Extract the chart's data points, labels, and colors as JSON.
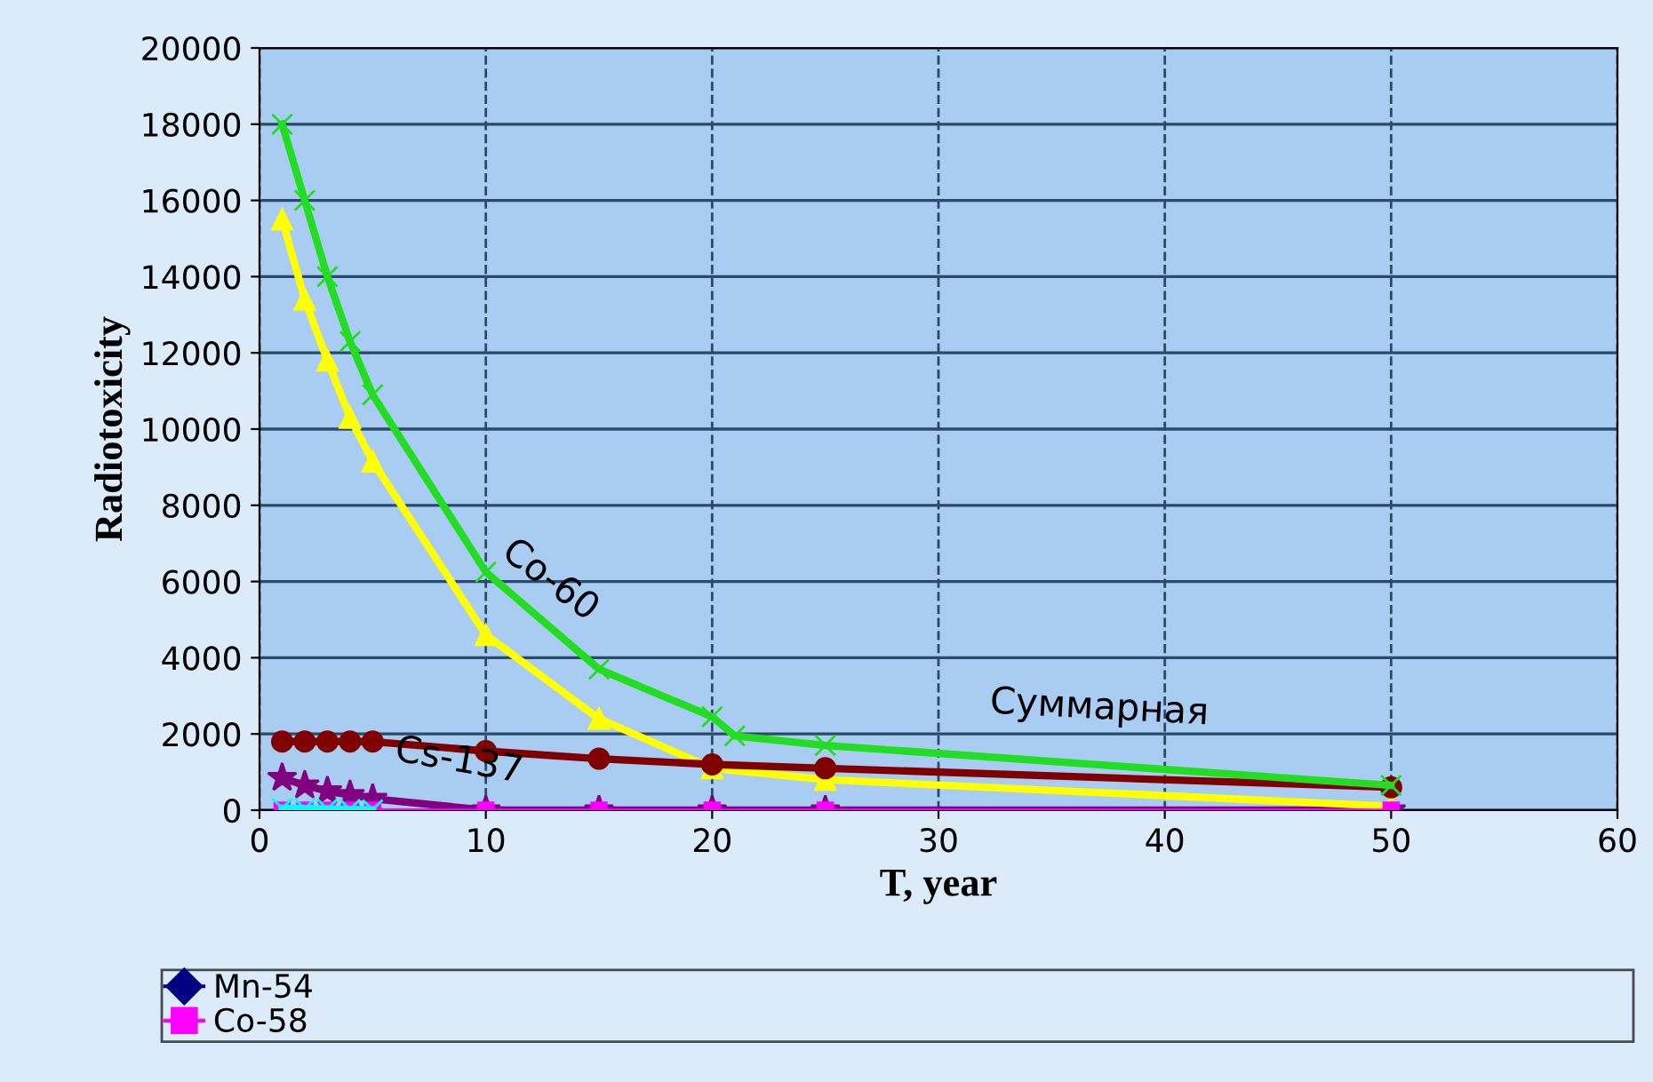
{
  "chart_data": {
    "type": "line",
    "xlabel": "T, year",
    "ylabel": "Radiotoxicity",
    "x": [
      1,
      2,
      3,
      4,
      5,
      10,
      15,
      20,
      25,
      50
    ],
    "xlim": [
      0,
      60
    ],
    "xticks": [
      0,
      10,
      20,
      30,
      40,
      50,
      60
    ],
    "ylim": [
      0,
      20000
    ],
    "yticks": [
      0,
      2000,
      4000,
      6000,
      8000,
      10000,
      12000,
      14000,
      16000,
      18000,
      20000
    ],
    "grid": true,
    "legend": "bottom",
    "line_style": "solid",
    "series": [
      {
        "name": "Mn-54",
        "color": "#000080",
        "marker": "diamond",
        "values": [
          null,
          null,
          null,
          null,
          null,
          null,
          null,
          null,
          null,
          null
        ]
      },
      {
        "name": "Co-58",
        "color": "#ff00ff",
        "marker": "square",
        "values": [
          0,
          0,
          0,
          0,
          0,
          0,
          0,
          0,
          0,
          0
        ]
      },
      {
        "color": "#00ffff",
        "marker": "cross",
        "values": [
          50,
          40,
          30,
          20,
          10,
          null,
          null,
          null,
          null,
          null
        ]
      },
      {
        "color": "#800080",
        "marker": "star",
        "values": [
          850,
          650,
          500,
          400,
          300,
          0,
          0,
          0,
          0,
          0
        ]
      },
      {
        "name": "Co-60",
        "color": "#ffff00",
        "marker": "triangle",
        "values": [
          15500,
          13400,
          11800,
          10300,
          9150,
          4600,
          2400,
          1100,
          800,
          100
        ]
      },
      {
        "name": "Cs-137",
        "color": "#800000",
        "marker": "circle",
        "values": [
          1800,
          1800,
          1800,
          1800,
          1800,
          1550,
          1350,
          1200,
          1100,
          600
        ]
      },
      {
        "name": "Суммарная",
        "color": "#22dd22",
        "marker": "cross",
        "x": [
          1,
          2,
          3,
          4,
          5,
          10,
          15,
          20,
          21,
          25,
          50
        ],
        "values": [
          18000,
          16000,
          14000,
          12300,
          10900,
          6250,
          3700,
          2450,
          1950,
          1700,
          650
        ]
      }
    ]
  }
}
